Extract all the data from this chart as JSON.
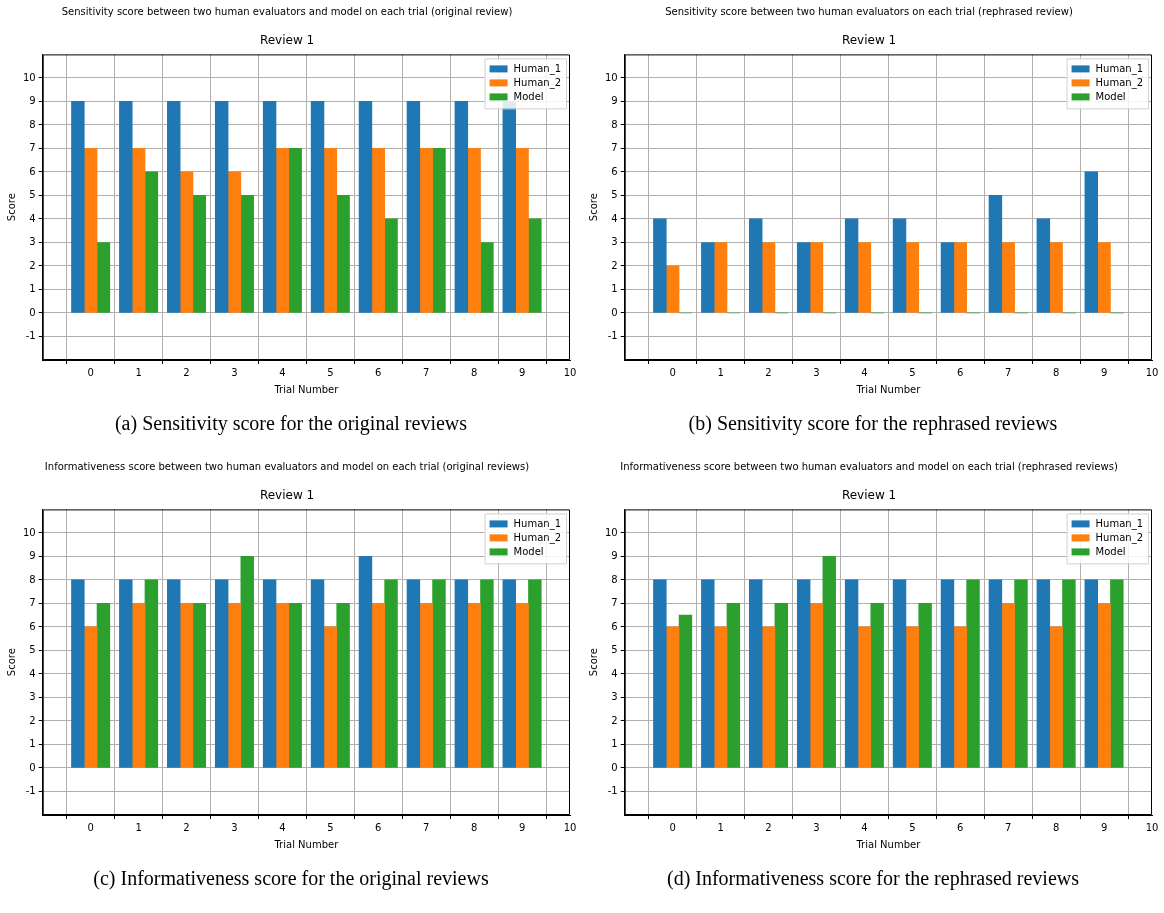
{
  "chart_data": [
    {
      "type": "bar",
      "title": "Sensitivity score between two human evaluators and model on each trial (original review)",
      "subtitle": "Review 1",
      "xlabel": "Trial Number",
      "ylabel": "Score",
      "x": [
        0,
        1,
        2,
        3,
        4,
        5,
        6,
        7,
        8,
        9
      ],
      "xlim": [
        -1,
        10
      ],
      "xticks": [
        0,
        1,
        2,
        3,
        4,
        5,
        6,
        7,
        8,
        9,
        10
      ],
      "ylim": [
        -2,
        11
      ],
      "yticks": [
        -1,
        0,
        1,
        2,
        3,
        4,
        5,
        6,
        7,
        8,
        9,
        10
      ],
      "grid": true,
      "legend": "top right",
      "series": [
        {
          "name": "Human_1",
          "color": "#1f77b4",
          "values": [
            9,
            9,
            9,
            9,
            9,
            9,
            9,
            9,
            9,
            9
          ]
        },
        {
          "name": "Human_2",
          "color": "#ff7f0e",
          "values": [
            7,
            7,
            6,
            6,
            7,
            7,
            7,
            7,
            7,
            7
          ]
        },
        {
          "name": "Model",
          "color": "#2ca02c",
          "values": [
            3,
            6,
            5,
            5,
            7,
            5,
            4,
            7,
            3,
            4
          ]
        }
      ],
      "annotations": [
        "(a) Sensitivity score for the original reviews"
      ]
    },
    {
      "type": "bar",
      "title": "Sensitivity score between two human evaluators on each trial (rephrased review)",
      "subtitle": "Review 1",
      "xlabel": "Trial Number",
      "ylabel": "Score",
      "x": [
        0,
        1,
        2,
        3,
        4,
        5,
        6,
        7,
        8,
        9
      ],
      "xlim": [
        -1,
        10
      ],
      "xticks": [
        0,
        1,
        2,
        3,
        4,
        5,
        6,
        7,
        8,
        9,
        10
      ],
      "ylim": [
        -2,
        11
      ],
      "yticks": [
        -1,
        0,
        1,
        2,
        3,
        4,
        5,
        6,
        7,
        8,
        9,
        10
      ],
      "grid": true,
      "legend": "top right",
      "series": [
        {
          "name": "Human_1",
          "color": "#1f77b4",
          "values": [
            4,
            3,
            4,
            3,
            4,
            4,
            3,
            5,
            4,
            6
          ]
        },
        {
          "name": "Human_2",
          "color": "#ff7f0e",
          "values": [
            2,
            3,
            3,
            3,
            3,
            3,
            3,
            3,
            3,
            3
          ]
        },
        {
          "name": "Model",
          "color": "#2ca02c",
          "values": [
            0,
            0,
            0,
            0,
            0,
            0,
            0,
            0,
            0,
            0
          ]
        }
      ],
      "annotations": [
        "(b) Sensitivity score for the rephrased reviews"
      ]
    },
    {
      "type": "bar",
      "title": "Informativeness score between two human evaluators and model on each trial (original reviews)",
      "subtitle": "Review 1",
      "xlabel": "Trial Number",
      "ylabel": "Score",
      "x": [
        0,
        1,
        2,
        3,
        4,
        5,
        6,
        7,
        8,
        9
      ],
      "xlim": [
        -1,
        10
      ],
      "xticks": [
        0,
        1,
        2,
        3,
        4,
        5,
        6,
        7,
        8,
        9,
        10
      ],
      "ylim": [
        -2,
        11
      ],
      "yticks": [
        -1,
        0,
        1,
        2,
        3,
        4,
        5,
        6,
        7,
        8,
        9,
        10
      ],
      "grid": true,
      "legend": "top right",
      "series": [
        {
          "name": "Human_1",
          "color": "#1f77b4",
          "values": [
            8,
            8,
            8,
            8,
            8,
            8,
            9,
            8,
            8,
            8
          ]
        },
        {
          "name": "Human_2",
          "color": "#ff7f0e",
          "values": [
            6,
            7,
            7,
            7,
            7,
            6,
            7,
            7,
            7,
            7
          ]
        },
        {
          "name": "Model",
          "color": "#2ca02c",
          "values": [
            7,
            8,
            7,
            9,
            7,
            7,
            8,
            8,
            8,
            8
          ]
        }
      ],
      "annotations": [
        "(c) Informativeness score for the original reviews"
      ]
    },
    {
      "type": "bar",
      "title": "Informativeness score between two human evaluators and model on each trial (rephrased reviews)",
      "subtitle": "Review 1",
      "xlabel": "Trial Number",
      "ylabel": "Score",
      "x": [
        0,
        1,
        2,
        3,
        4,
        5,
        6,
        7,
        8,
        9
      ],
      "xlim": [
        -1,
        10
      ],
      "xticks": [
        0,
        1,
        2,
        3,
        4,
        5,
        6,
        7,
        8,
        9,
        10
      ],
      "ylim": [
        -2,
        11
      ],
      "yticks": [
        -1,
        0,
        1,
        2,
        3,
        4,
        5,
        6,
        7,
        8,
        9,
        10
      ],
      "grid": true,
      "legend": "top right",
      "series": [
        {
          "name": "Human_1",
          "color": "#1f77b4",
          "values": [
            8,
            8,
            8,
            8,
            8,
            8,
            8,
            8,
            8,
            8
          ]
        },
        {
          "name": "Human_2",
          "color": "#ff7f0e",
          "values": [
            6,
            6,
            6,
            7,
            6,
            6,
            6,
            7,
            6,
            7
          ]
        },
        {
          "name": "Model",
          "color": "#2ca02c",
          "values": [
            6.5,
            7,
            7,
            9,
            7,
            7,
            8,
            8,
            8,
            8
          ]
        }
      ],
      "annotations": [
        "(d) Informativeness score for the rephrased reviews"
      ]
    }
  ]
}
